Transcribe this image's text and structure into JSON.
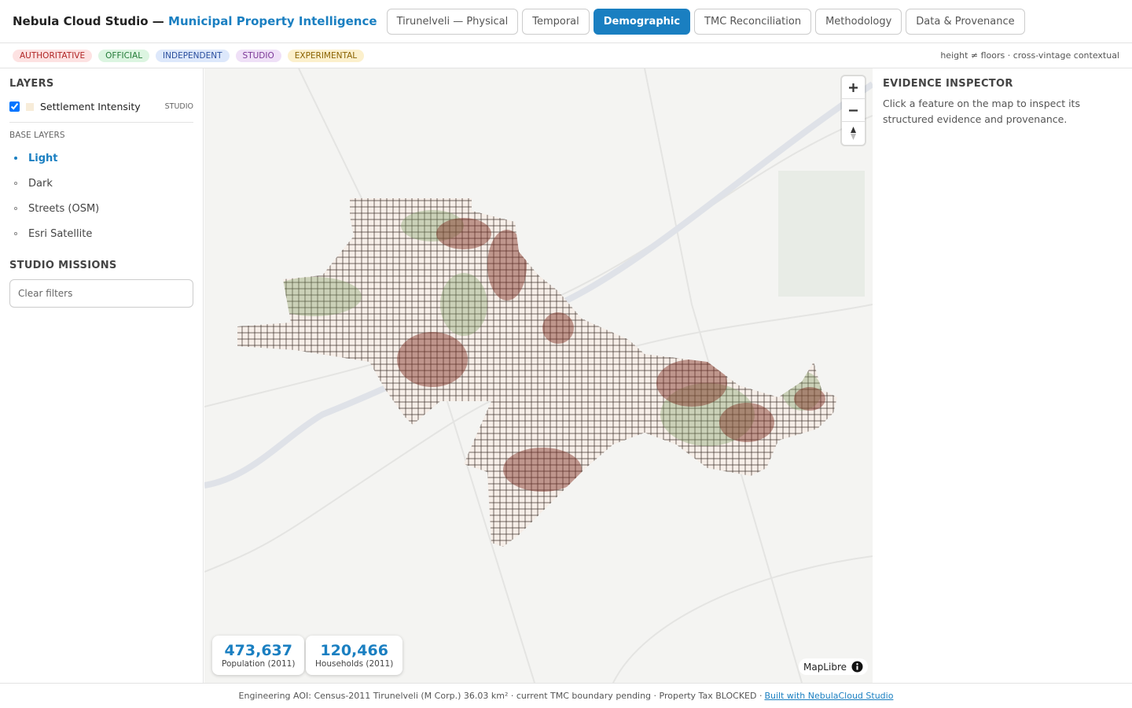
{
  "header": {
    "brand": "Nebula Cloud Studio —",
    "subtitle": "Municipal Property Intelligence",
    "tabs": [
      "Tirunelveli — Physical",
      "Temporal",
      "Demographic",
      "TMC Reconciliation",
      "Methodology",
      "Data & Provenance"
    ],
    "active_tab": 2
  },
  "badges": [
    "AUTHORITATIVE",
    "OFFICIAL",
    "INDEPENDENT",
    "STUDIO",
    "EXPERIMENTAL"
  ],
  "badge_note": "height ≠ floors · cross-vintage contextual",
  "sidebar": {
    "layers_title": "LAYERS",
    "layer": {
      "name": "Settlement Intensity",
      "tag": "STUDIO"
    },
    "base_title": "BASE LAYERS",
    "base_layers": [
      "Light",
      "Dark",
      "Streets (OSM)",
      "Esri Satellite"
    ],
    "active_base": 0,
    "missions_title": "STUDIO MISSIONS",
    "clear_button": "Clear filters"
  },
  "map": {
    "stats": [
      {
        "value": "473,637",
        "label": "Population (2011)"
      },
      {
        "value": "120,466",
        "label": "Households (2011)"
      }
    ],
    "attribution": "MapLibre"
  },
  "inspector": {
    "title": "EVIDENCE INSPECTOR",
    "text": "Click a feature on the map to inspect its structured evidence and provenance."
  },
  "footer": {
    "text": "Engineering AOI: Census-2011 Tirunelveli (M Corp.) 36.03 km² · current TMC boundary pending · Property Tax BLOCKED ·",
    "link": "Built with NebulaCloud Studio"
  }
}
